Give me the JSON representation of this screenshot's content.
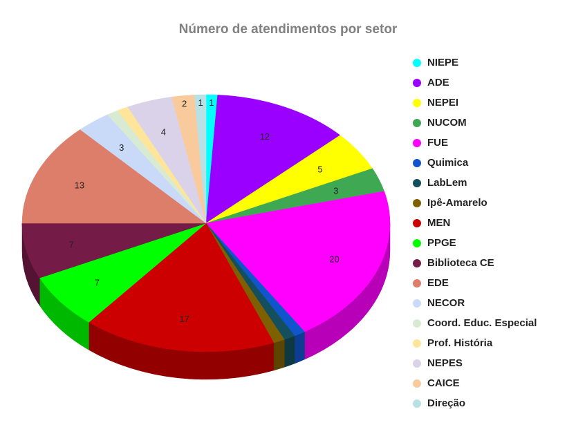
{
  "chart_data": {
    "type": "pie",
    "title": "Número de atendimentos por setor",
    "series": [
      {
        "label": "NIEPE",
        "value": 1,
        "color": "#00ffff"
      },
      {
        "label": "ADE",
        "value": 12,
        "color": "#9900ff"
      },
      {
        "label": "NEPEI",
        "value": 5,
        "color": "#ffff00"
      },
      {
        "label": "NUCOM",
        "value": 3,
        "color": "#3ea852"
      },
      {
        "label": "FUE",
        "value": 20,
        "color": "#ff00ff"
      },
      {
        "label": "Quimica",
        "value": 1,
        "color": "#1155cc"
      },
      {
        "label": "LabLem",
        "value": 1,
        "color": "#134f5c"
      },
      {
        "label": "Ipê-Amarelo",
        "value": 1,
        "color": "#7f6000"
      },
      {
        "label": "MEN",
        "value": 17,
        "color": "#cc0000"
      },
      {
        "label": "PPGE",
        "value": 7,
        "color": "#00ff00"
      },
      {
        "label": "Biblioteca CE",
        "value": 7,
        "color": "#741b47"
      },
      {
        "label": "EDE",
        "value": 13,
        "color": "#dd7e6b"
      },
      {
        "label": "NECOR",
        "value": 3,
        "color": "#c9daf8"
      },
      {
        "label": "Coord. Educ. Especial",
        "value": 1,
        "color": "#d9ead3"
      },
      {
        "label": "Prof. História",
        "value": 1,
        "color": "#ffe599"
      },
      {
        "label": "NEPES",
        "value": 4,
        "color": "#d9d2e9"
      },
      {
        "label": "CAICE",
        "value": 2,
        "color": "#f9cb9c"
      },
      {
        "label": "Direção",
        "value": 1,
        "color": "#b7e1e5"
      }
    ],
    "labels_shown_in_slices": {
      "NIEPE": "1",
      "ADE": "12",
      "NEPEI": "5",
      "NUCOM": "3",
      "FUE": "20",
      "MEN": "17",
      "PPGE": "7",
      "Biblioteca CE": "7",
      "EDE": "13",
      "NECOR": "3",
      "NEPES": "4",
      "CAICE": "2",
      "Direção": "1"
    },
    "legend_position": "right",
    "style": "3d-pie"
  }
}
